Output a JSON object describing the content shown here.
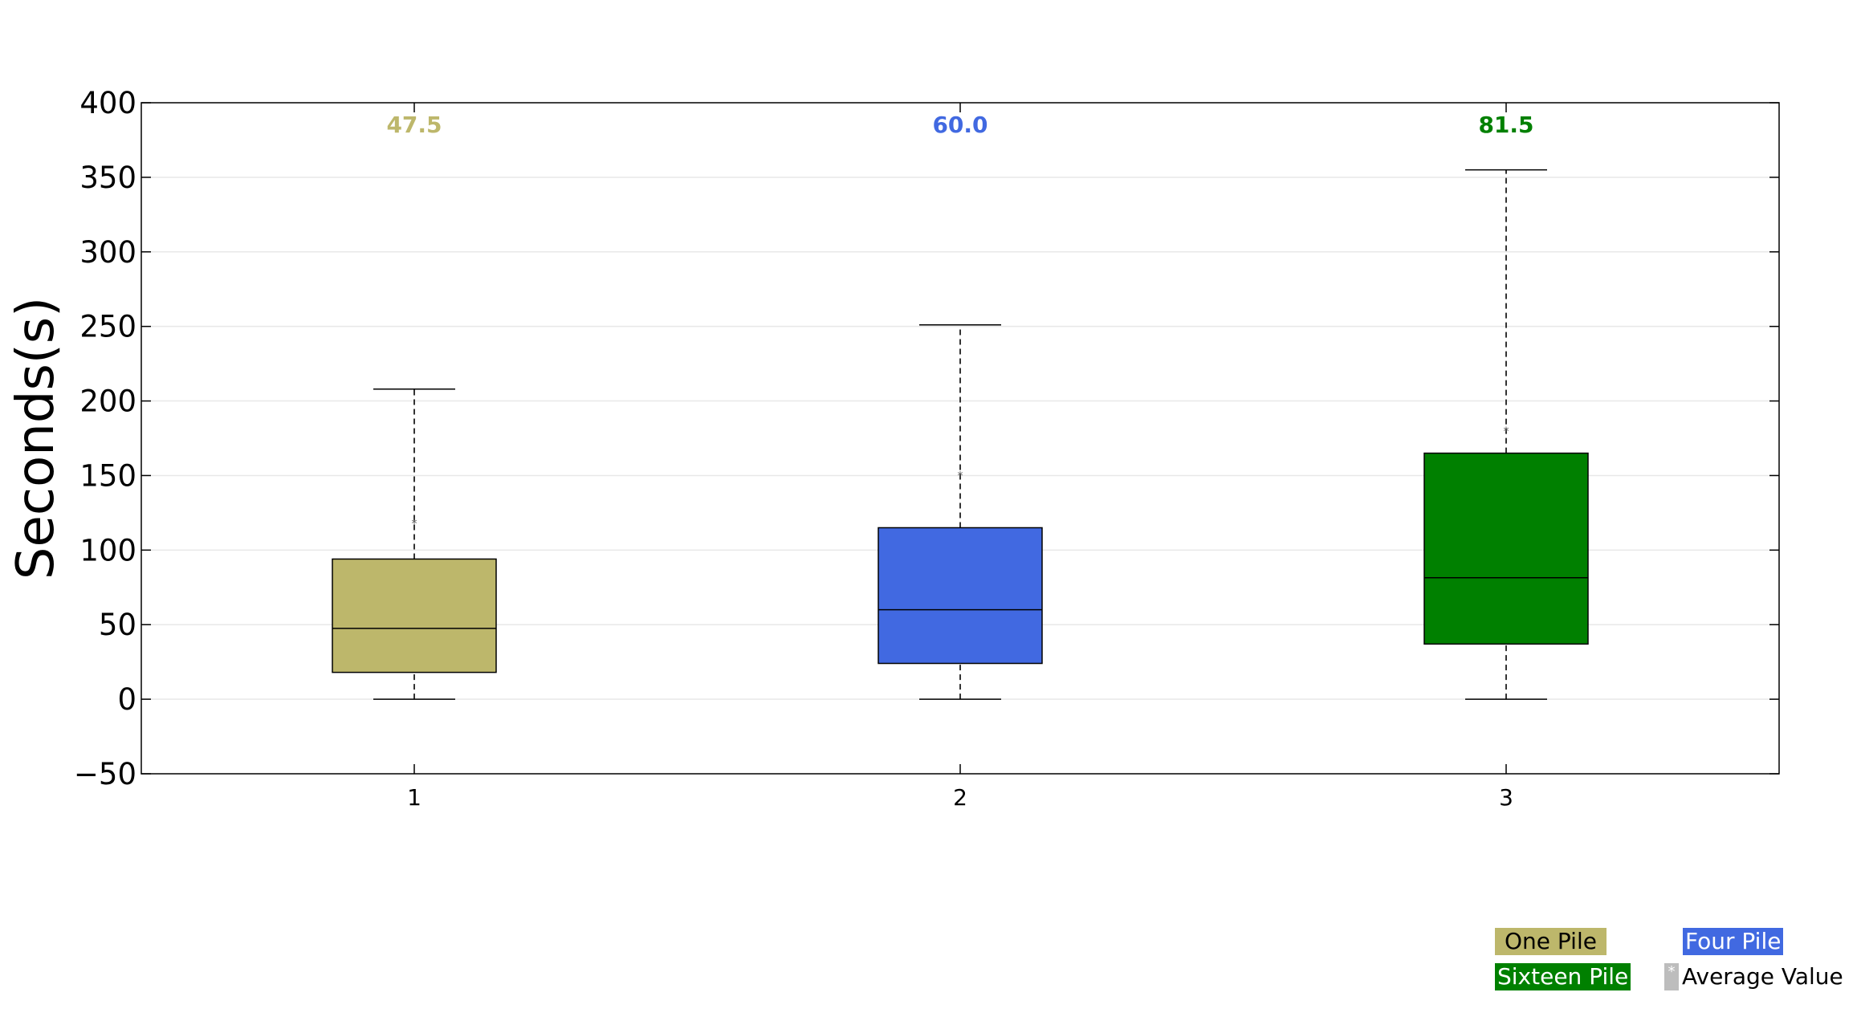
{
  "chart_data": {
    "type": "box",
    "ylabel": "Seconds(s)",
    "xlabel": "",
    "ylim": [
      -50,
      400
    ],
    "yticks": [
      -50,
      0,
      50,
      100,
      150,
      200,
      250,
      300,
      350,
      400
    ],
    "ytick_labels": [
      "−50",
      "0",
      "50",
      "100",
      "150",
      "200",
      "250",
      "300",
      "350",
      "400"
    ],
    "categories": [
      "1",
      "2",
      "3"
    ],
    "grid": "horizontal",
    "legend_placement": "bottom-right",
    "series": [
      {
        "name": "One Pile",
        "color": "#bdb76b",
        "label_color": "#000000",
        "min": 0,
        "q1": 18,
        "median": 47.5,
        "q3": 94,
        "max": 208,
        "mean": 119,
        "median_label": "47.5"
      },
      {
        "name": "Four Pile",
        "color": "#4169e1",
        "label_color": "#ffffff",
        "min": 0,
        "q1": 24,
        "median": 60.0,
        "q3": 115,
        "max": 251,
        "mean": 151,
        "median_label": "60.0"
      },
      {
        "name": "Sixteen Pile",
        "color": "#008000",
        "label_color": "#ffffff",
        "min": 0,
        "q1": 37,
        "median": 81.5,
        "q3": 165,
        "max": 355,
        "mean": 181,
        "median_label": "81.5"
      }
    ],
    "mean_legend_label": "Average Value",
    "mean_marker_symbol": "*"
  }
}
